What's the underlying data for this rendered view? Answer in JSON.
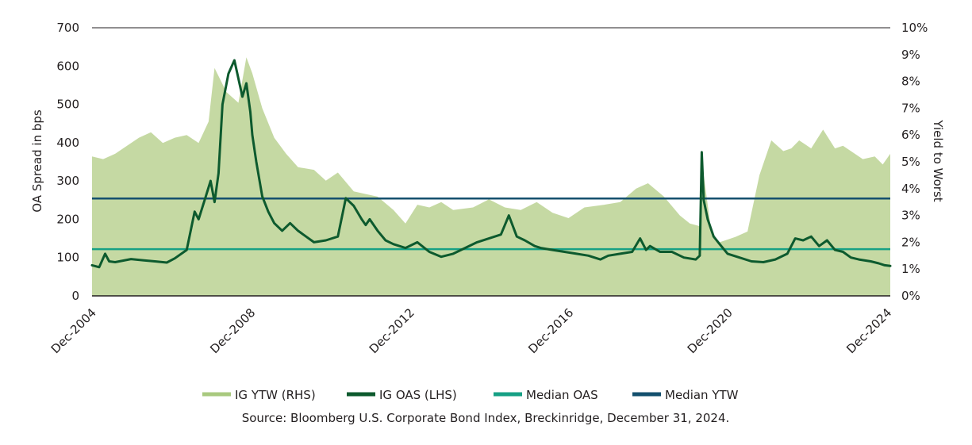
{
  "chart_data": {
    "type": "line",
    "source": "Source: Bloomberg U.S. Corporate Bond Index, Breckinridge, December 31, 2024.",
    "ylabel_left": "OA Spread in bps",
    "ylabel_right": "Yield to Worst",
    "ylim_left": [
      0,
      700
    ],
    "ylim_right": [
      0,
      10
    ],
    "yticks_left": [
      "0",
      "100",
      "200",
      "300",
      "400",
      "500",
      "600",
      "700"
    ],
    "yticks_right": [
      "0%",
      "1%",
      "2%",
      "3%",
      "4%",
      "5%",
      "6%",
      "7%",
      "8%",
      "9%",
      "10%"
    ],
    "xlim": [
      2004.92,
      2024.99
    ],
    "xticks": [
      {
        "label": "Dec-2004",
        "x": 2004.92
      },
      {
        "label": "Dec-2008",
        "x": 2008.92
      },
      {
        "label": "Dec-2012",
        "x": 2012.92
      },
      {
        "label": "Dec-2016",
        "x": 2016.92
      },
      {
        "label": "Dec-2020",
        "x": 2020.92
      },
      {
        "label": "Dec-2024",
        "x": 2024.92
      }
    ],
    "legend_position": "bottom",
    "gridlines": "top-only",
    "series": [
      {
        "name": "IG YTW (RHS)",
        "kind": "area",
        "axis": "right",
        "color": "#c5d9a3",
        "legend_color": "#a9c97f",
        "x": [
          2004.92,
          2005.2,
          2005.5,
          2005.8,
          2006.1,
          2006.4,
          2006.7,
          2007.0,
          2007.3,
          2007.6,
          2007.85,
          2008.0,
          2008.3,
          2008.6,
          2008.8,
          2008.95,
          2009.2,
          2009.5,
          2009.8,
          2010.1,
          2010.5,
          2010.8,
          2011.1,
          2011.5,
          2011.8,
          2012.1,
          2012.5,
          2012.8,
          2013.1,
          2013.4,
          2013.7,
          2014.0,
          2014.5,
          2014.9,
          2015.3,
          2015.7,
          2016.1,
          2016.5,
          2016.9,
          2017.3,
          2017.8,
          2018.2,
          2018.6,
          2018.9,
          2019.3,
          2019.7,
          2019.95,
          2020.2,
          2020.3,
          2020.5,
          2020.7,
          2020.9,
          2021.1,
          2021.4,
          2021.7,
          2022.0,
          2022.3,
          2022.5,
          2022.7,
          2023.0,
          2023.3,
          2023.6,
          2023.8,
          2024.0,
          2024.3,
          2024.6,
          2024.8,
          2024.99
        ],
        "values": [
          5.2,
          5.1,
          5.3,
          5.6,
          5.9,
          6.1,
          5.7,
          5.9,
          6.0,
          5.7,
          6.5,
          8.5,
          7.6,
          7.2,
          8.9,
          8.3,
          7.0,
          5.9,
          5.3,
          4.8,
          4.7,
          4.3,
          4.6,
          3.9,
          3.8,
          3.7,
          3.2,
          2.7,
          3.4,
          3.3,
          3.5,
          3.2,
          3.3,
          3.6,
          3.3,
          3.2,
          3.5,
          3.1,
          2.9,
          3.3,
          3.4,
          3.5,
          4.0,
          4.2,
          3.7,
          3.0,
          2.7,
          2.6,
          4.5,
          2.3,
          2.0,
          2.1,
          2.2,
          2.4,
          4.5,
          5.8,
          5.4,
          5.5,
          5.8,
          5.5,
          6.2,
          5.5,
          5.6,
          5.4,
          5.1,
          5.2,
          4.9,
          5.3
        ]
      },
      {
        "name": "IG OAS (LHS)",
        "kind": "line",
        "axis": "left",
        "color": "#0d5a2e",
        "x": [
          2004.92,
          2005.1,
          2005.25,
          2005.35,
          2005.5,
          2005.9,
          2006.2,
          2006.5,
          2006.8,
          2007.0,
          2007.3,
          2007.5,
          2007.6,
          2007.75,
          2007.9,
          2008.0,
          2008.1,
          2008.2,
          2008.35,
          2008.5,
          2008.7,
          2008.8,
          2008.9,
          2008.95,
          2009.05,
          2009.2,
          2009.35,
          2009.5,
          2009.7,
          2009.9,
          2010.1,
          2010.3,
          2010.5,
          2010.8,
          2011.1,
          2011.3,
          2011.5,
          2011.7,
          2011.8,
          2011.9,
          2012.1,
          2012.3,
          2012.5,
          2012.8,
          2013.1,
          2013.4,
          2013.7,
          2014.0,
          2014.3,
          2014.6,
          2014.9,
          2015.2,
          2015.4,
          2015.6,
          2015.8,
          2016.05,
          2016.2,
          2016.5,
          2016.8,
          2017.1,
          2017.4,
          2017.7,
          2017.9,
          2018.2,
          2018.5,
          2018.7,
          2018.85,
          2018.95,
          2019.2,
          2019.5,
          2019.8,
          2020.1,
          2020.2,
          2020.25,
          2020.3,
          2020.4,
          2020.55,
          2020.7,
          2020.9,
          2021.2,
          2021.5,
          2021.8,
          2022.1,
          2022.4,
          2022.6,
          2022.8,
          2023.0,
          2023.2,
          2023.4,
          2023.6,
          2023.8,
          2024.0,
          2024.2,
          2024.5,
          2024.7,
          2024.85,
          2024.99
        ],
        "values": [
          80,
          75,
          110,
          90,
          88,
          96,
          93,
          90,
          87,
          98,
          120,
          220,
          200,
          250,
          300,
          245,
          320,
          500,
          580,
          615,
          520,
          555,
          480,
          420,
          350,
          260,
          220,
          190,
          170,
          190,
          170,
          155,
          140,
          145,
          155,
          255,
          235,
          200,
          185,
          200,
          170,
          145,
          135,
          125,
          140,
          115,
          102,
          110,
          125,
          140,
          150,
          160,
          210,
          155,
          145,
          130,
          125,
          120,
          115,
          110,
          105,
          95,
          105,
          110,
          115,
          150,
          120,
          130,
          115,
          115,
          100,
          95,
          105,
          375,
          250,
          200,
          155,
          135,
          110,
          100,
          90,
          88,
          95,
          110,
          150,
          145,
          155,
          130,
          145,
          120,
          115,
          100,
          95,
          90,
          85,
          80,
          78
        ]
      },
      {
        "name": "Median OAS",
        "kind": "hline",
        "axis": "left",
        "value": 122,
        "color": "#17a085"
      },
      {
        "name": "Median YTW",
        "kind": "hline",
        "axis": "right",
        "value": 3.63,
        "color": "#14506e"
      }
    ]
  }
}
